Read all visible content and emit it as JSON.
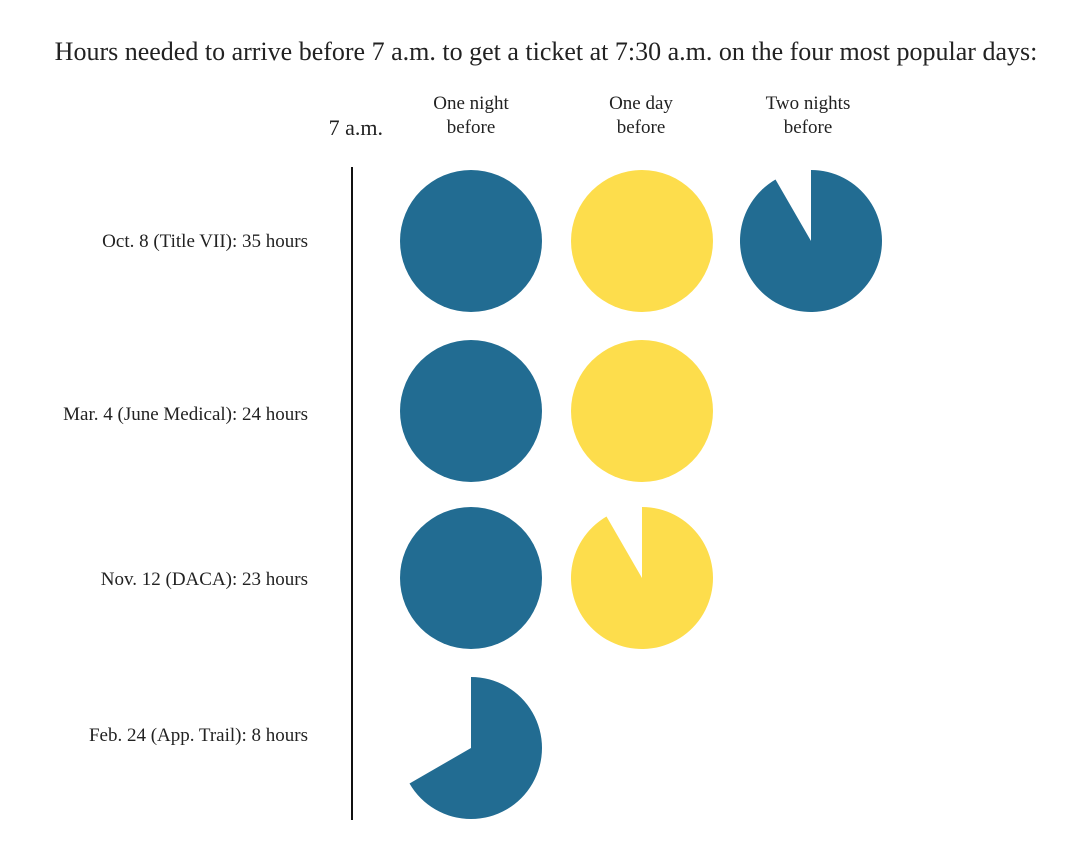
{
  "chart_data": {
    "type": "pie",
    "title": "Hours needed to arrive before 7 a.m. to get a ticket at 7:30 a.m. on the four most popular days:",
    "start_label": "7 a.m.",
    "hours_per_circle": 12,
    "columns": [
      {
        "line1": "One night",
        "line2": "before",
        "color": "#226c92"
      },
      {
        "line1": "One day",
        "line2": "before",
        "color": "#fddd4c"
      },
      {
        "line1": "Two nights",
        "line2": "before",
        "color": "#226c92"
      }
    ],
    "rows": [
      {
        "label": "Oct. 8 (Title VII): 35 hours",
        "hours": 35
      },
      {
        "label": "Mar. 4 (June Medical): 24 hours",
        "hours": 24
      },
      {
        "label": "Nov. 12 (DACA): 23 hours",
        "hours": 23
      },
      {
        "label": "Feb. 24 (App. Trail): 8 hours",
        "hours": 8
      }
    ]
  }
}
